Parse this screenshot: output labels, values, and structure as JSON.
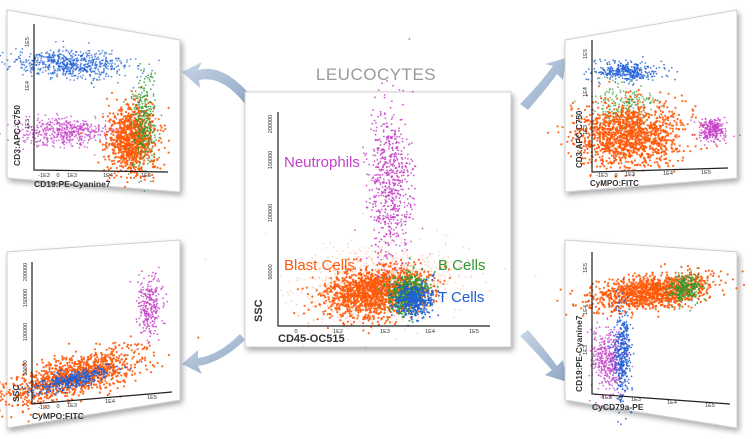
{
  "title": "LEUCOCYTES",
  "colors": {
    "neutrophils": "#c43fc6",
    "blast": "#ff5a0a",
    "b_cells": "#2f9a2f",
    "t_cells": "#1f5fd6",
    "arrow": "#9fb4cf"
  },
  "center": {
    "xlabel": "CD45-OC515",
    "ylabel": "SSC",
    "xticks": [
      "0",
      "1E2",
      "1E3",
      "1E4",
      "1E5"
    ],
    "yticks": [
      "50000",
      "100000",
      "150000",
      "200000"
    ],
    "labels": {
      "neutrophils": "Neutrophils",
      "blast": "Blast Cells",
      "b_cells": "B Cells",
      "t_cells": "T Cells"
    }
  },
  "panels": {
    "top_left": {
      "xlabel": "CD19:PE-Cyanine7",
      "ylabel": "CD3:APC-C750",
      "xticks": [
        "-1E3",
        "0",
        "1E3",
        "1E4",
        "1E5"
      ],
      "yticks": [
        "1E3",
        "1E4",
        "1E5"
      ]
    },
    "top_right": {
      "xlabel": "CyMPO:FITC",
      "ylabel": "CD3:APC-C750",
      "xticks": [
        "-1E3",
        "0",
        "1E3",
        "1E4",
        "1E5"
      ],
      "yticks": [
        "1E3",
        "1E4",
        "1E5"
      ]
    },
    "bottom_left": {
      "xlabel": "CyMPO:FITC",
      "ylabel": "SSC",
      "xticks": [
        "-1E3",
        "0",
        "1E3",
        "1E4",
        "1E5"
      ],
      "yticks": [
        "50000",
        "100000",
        "150000",
        "200000"
      ]
    },
    "bottom_right": {
      "xlabel": "CyCD79a-PE",
      "ylabel": "CD19:PE-Cyanine7",
      "xticks": [
        "-1E3",
        "0",
        "1E3",
        "1E4",
        "1E5"
      ],
      "yticks": [
        "1E3",
        "1E4",
        "1E5"
      ]
    }
  }
}
